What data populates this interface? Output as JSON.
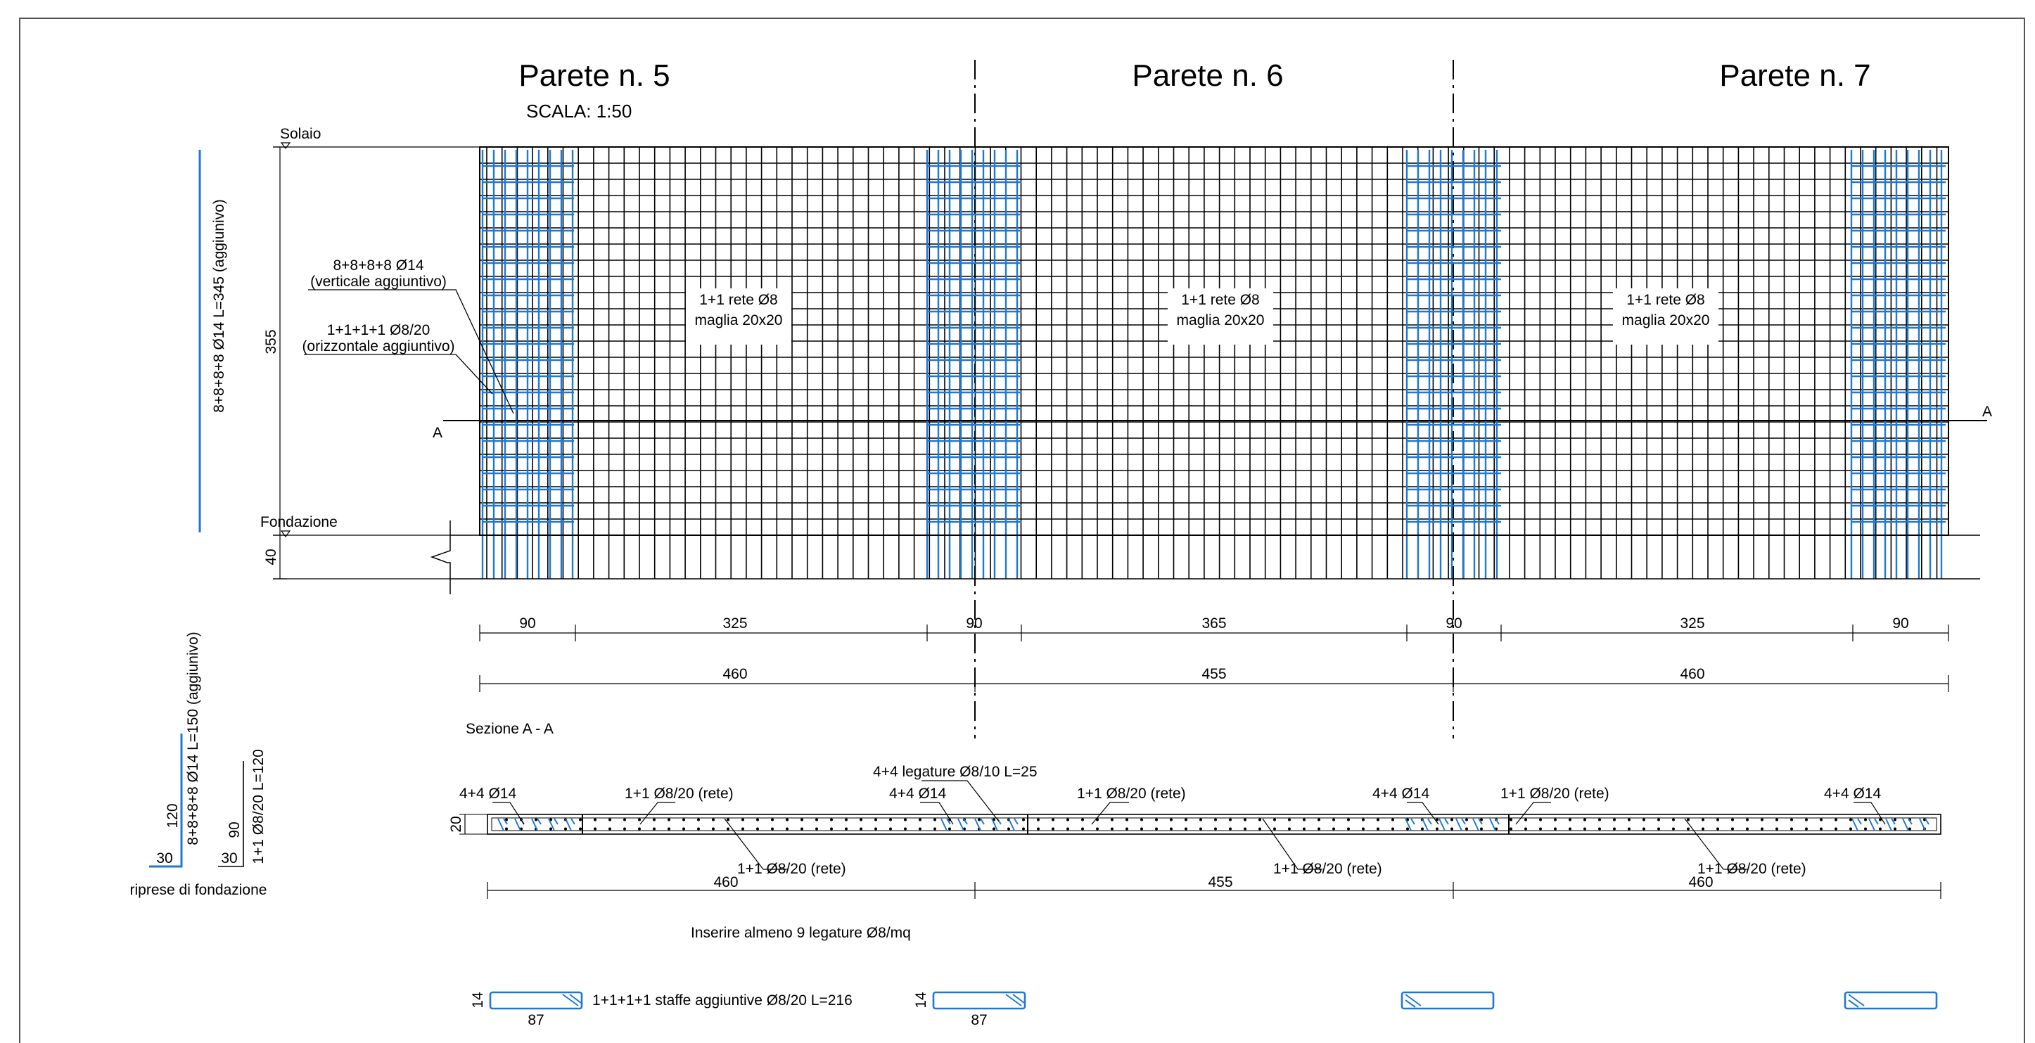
{
  "titles": {
    "p5": "Parete n. 5",
    "p6": "Parete n. 6",
    "p7": "Parete n. 7"
  },
  "scale": "SCALA: 1:50",
  "levels": {
    "solaio": "Solaio",
    "fondazione": "Fondazione"
  },
  "height_dims": {
    "wall": "355",
    "base": "40"
  },
  "side_bar_label": "8+8+8+8 Ø14 L=345 (aggiunivo)",
  "callouts": {
    "vert_line1": "8+8+8+8 Ø14",
    "vert_line2": "(verticale aggiuntivo)",
    "hor_line1": "1+1+1+1 Ø8/20",
    "hor_line2": "(orizzontale aggiuntivo)"
  },
  "mesh_labels": [
    {
      "line1": "1+1 rete Ø8",
      "line2": "maglia 20x20"
    },
    {
      "line1": "1+1 rete Ø8",
      "line2": "maglia 20x20"
    },
    {
      "line1": "1+1 rete Ø8",
      "line2": "maglia 20x20"
    }
  ],
  "section_marks": {
    "left": "A",
    "right": "A"
  },
  "dims_row1": [
    "90",
    "325",
    "90",
    "365",
    "90",
    "325",
    "90"
  ],
  "dims_row2": [
    "460",
    "455",
    "460"
  ],
  "section_title": "Sezione A - A",
  "section_callouts": {
    "bars_a": "4+4 Ø14",
    "bars_b": "4+4 Ø14",
    "bars_c": "4+4 Ø14",
    "bars_d": "4+4 Ø14",
    "legature": "4+4 legature Ø8/10 L=25",
    "rete_top_a": "1+1 Ø8/20 (rete)",
    "rete_top_b": "1+1 Ø8/20 (rete)",
    "rete_top_c": "1+1 Ø8/20 (rete)",
    "rete_bot_a": "1+1 Ø8/20 (rete)",
    "rete_bot_b": "1+1 Ø8/20 (rete)",
    "rete_bot_c": "1+1 Ø8/20 (rete)"
  },
  "section_thickness": "20",
  "section_dims": [
    "460",
    "455",
    "460"
  ],
  "note_legature": "Inserire almeno 9 legature Ø8/mq",
  "ripresa": {
    "label_a": "8+8+8+8 Ø14 L=150 (aggiunivo)",
    "dim_a_v": "120",
    "dim_a_h": "30",
    "label_b": "1+1 Ø8/20 L=120",
    "dim_b_v": "90",
    "dim_b_h": "30",
    "caption": "riprese di fondazione"
  },
  "stirrups": {
    "label": "1+1+1+1 staffe aggiuntive Ø8/20 L=216",
    "s1_h": "14",
    "s1_w": "87",
    "s2_h": "14",
    "s2_w": "87"
  },
  "colors": {
    "ink": "#000000",
    "blue": "#1f78d1",
    "frame": "#555555"
  }
}
